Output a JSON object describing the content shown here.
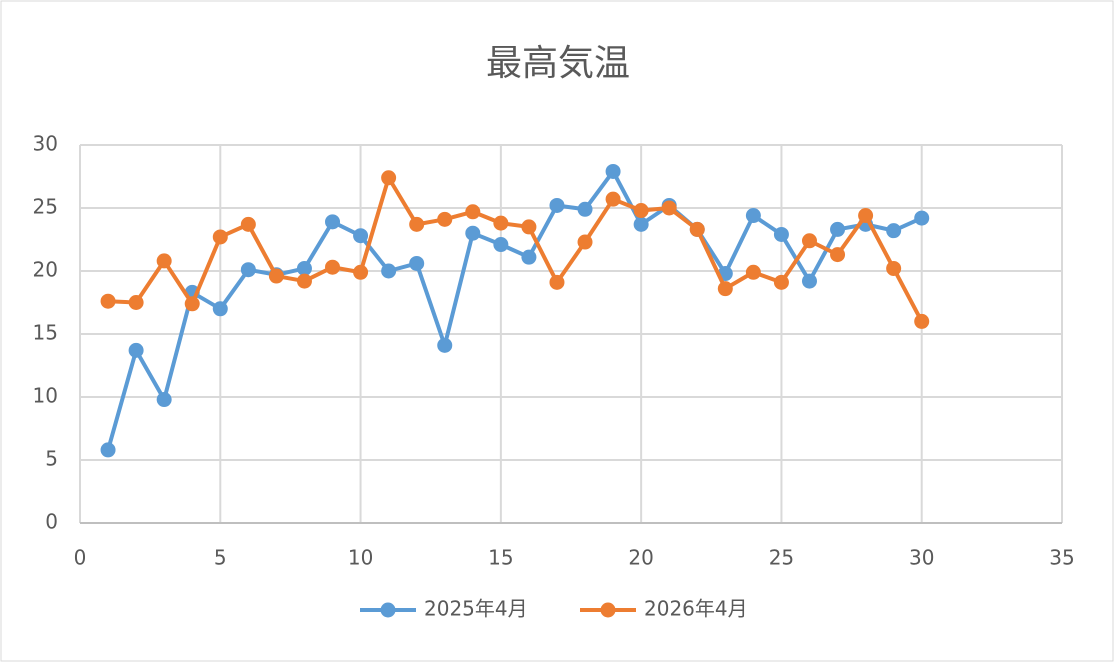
{
  "chart_data": {
    "type": "line",
    "title": "最高気温",
    "x": [
      1,
      2,
      3,
      4,
      5,
      6,
      7,
      8,
      9,
      10,
      11,
      12,
      13,
      14,
      15,
      16,
      17,
      18,
      19,
      20,
      21,
      22,
      23,
      24,
      25,
      26,
      27,
      28,
      29,
      30
    ],
    "series": [
      {
        "name": "2025年4月",
        "color": "#5b9bd5",
        "values": [
          5.8,
          13.7,
          9.8,
          18.3,
          17.0,
          20.1,
          19.7,
          20.2,
          23.9,
          22.8,
          20.0,
          20.6,
          14.1,
          23.0,
          22.1,
          21.1,
          25.2,
          24.9,
          27.9,
          23.7,
          25.2,
          23.3,
          19.8,
          24.4,
          22.9,
          19.2,
          23.3,
          23.7,
          23.2,
          24.2
        ]
      },
      {
        "name": "2026年4月",
        "color": "#ed7d31",
        "values": [
          17.6,
          17.5,
          20.8,
          17.4,
          22.7,
          23.7,
          19.6,
          19.2,
          20.3,
          19.9,
          27.4,
          23.7,
          24.1,
          24.7,
          23.8,
          23.5,
          19.1,
          22.3,
          25.7,
          24.8,
          25.0,
          23.3,
          18.6,
          19.9,
          19.1,
          22.4,
          21.3,
          24.4,
          20.2,
          16.0
        ]
      }
    ],
    "xlim": [
      0,
      35
    ],
    "xticks": [
      0,
      5,
      10,
      15,
      20,
      25,
      30,
      35
    ],
    "ylim": [
      0,
      30
    ],
    "yticks": [
      0,
      5,
      10,
      15,
      20,
      25,
      30
    ],
    "grid": true,
    "legend": "bottom"
  }
}
